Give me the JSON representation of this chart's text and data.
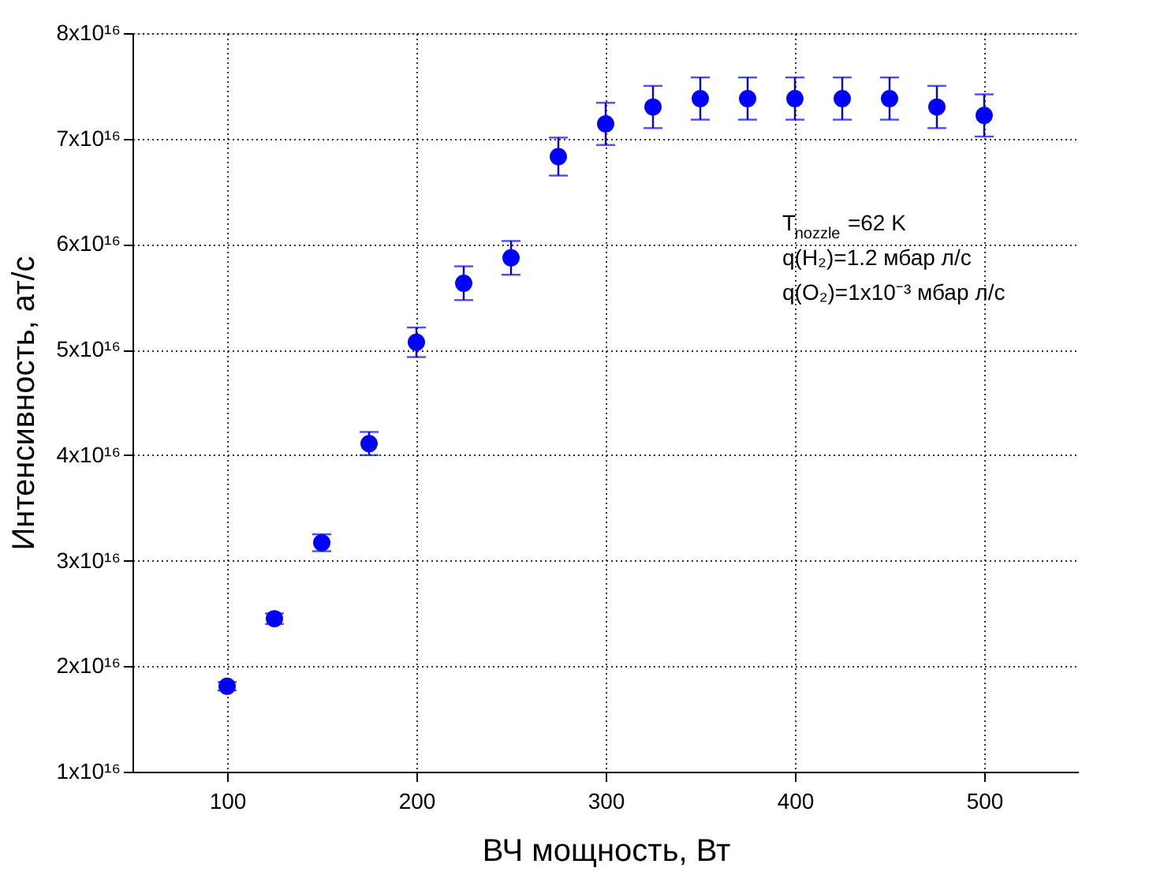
{
  "chart_data": {
    "type": "scatter",
    "xlabel": "ВЧ мощность, Вт",
    "ylabel": "Интенсивность, ат/с",
    "x": [
      100,
      125,
      150,
      175,
      200,
      225,
      250,
      275,
      300,
      325,
      350,
      375,
      400,
      425,
      450,
      475,
      500
    ],
    "series": [
      {
        "color": "#0000ff",
        "values": [
          1.81e+16,
          2.45e+16,
          3.17e+16,
          4.11e+16,
          5.07e+16,
          5.63e+16,
          5.87e+16,
          6.83e+16,
          7.14e+16,
          7.3e+16,
          7.38e+16,
          7.38e+16,
          7.38e+16,
          7.38e+16,
          7.38e+16,
          7.3e+16,
          7.22e+16
        ],
        "errors": [
          400000000000000.0,
          500000000000000.0,
          800000000000000.0,
          1100000000000000.0,
          1400000000000000.0,
          1600000000000000.0,
          1600000000000000.0,
          1800000000000000.0,
          2000000000000000.0,
          2000000000000000.0,
          2000000000000000.0,
          2000000000000000.0,
          2000000000000000.0,
          2000000000000000.0,
          2000000000000000.0,
          2000000000000000.0,
          2000000000000000.0
        ]
      }
    ],
    "xlim": [
      50,
      550
    ],
    "xticks": [
      100,
      200,
      300,
      400,
      500
    ],
    "ylim": [
      1e+16,
      8e+16
    ],
    "yticks": [
      {
        "value": 1e+16,
        "label": "1x10¹⁶"
      },
      {
        "value": 2e+16,
        "label": "2x10¹⁶"
      },
      {
        "value": 3e+16,
        "label": "3x10¹⁶"
      },
      {
        "value": 4e+16,
        "label": "4x10¹⁶"
      },
      {
        "value": 5e+16,
        "label": "5x10¹⁶"
      },
      {
        "value": 6e+16,
        "label": "6x10¹⁶"
      },
      {
        "value": 7e+16,
        "label": "7x10¹⁶"
      },
      {
        "value": 8e+16,
        "label": "8x10¹⁶"
      }
    ],
    "grid": true,
    "marker": "circle",
    "annotations": [
      "T$_{nozzle}$=62 K",
      "q(H₂)=1.2 мбар л/с",
      "q(O₂)=1x10⁻³ мбар л/с"
    ]
  }
}
